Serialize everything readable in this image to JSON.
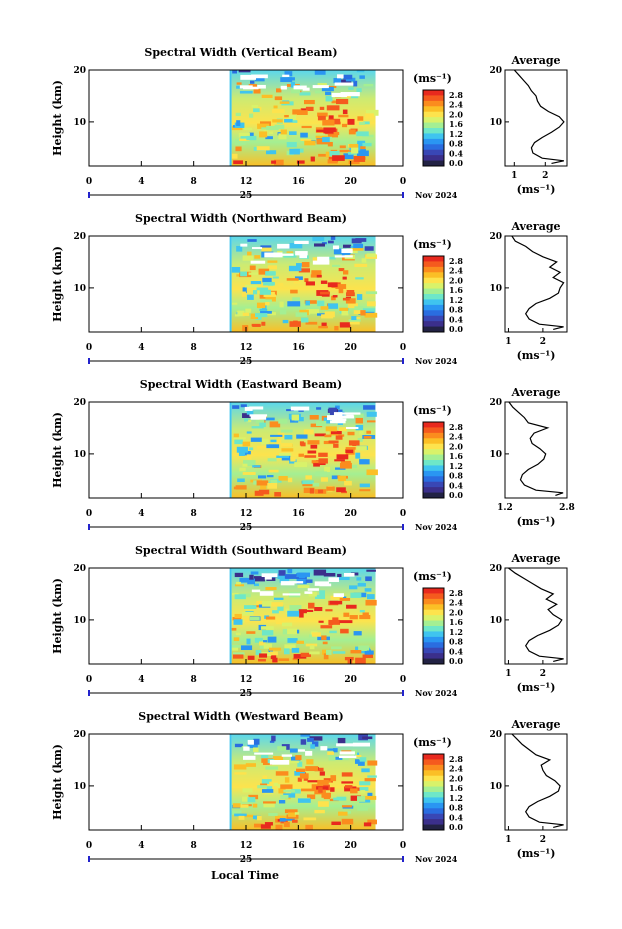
{
  "figure": {
    "xlabel": "Local Time",
    "date_label": "Nov 2024",
    "day_label": "25"
  },
  "colorbar": {
    "unit": "(ms⁻¹)",
    "ticks": [
      "2.8",
      "2.4",
      "2.0",
      "1.6",
      "1.2",
      "0.8",
      "0.4",
      "0.0"
    ],
    "colors": [
      "#e8291e",
      "#f55a1e",
      "#fb8c1e",
      "#fbbf26",
      "#fde34d",
      "#d9f26a",
      "#a4ef93",
      "#6ee7c8",
      "#3fc4ef",
      "#2a96f2",
      "#2a6de0",
      "#3947b5",
      "#3b2f8b",
      "#222244"
    ]
  },
  "chart_data": [
    {
      "type": "heatmap",
      "title": "Spectral Width (Vertical Beam)",
      "ylabel": "Height (km)",
      "x_ticks": [
        "0",
        "4",
        "8",
        "12",
        "16",
        "20",
        "0"
      ],
      "y_ticks": [
        "20",
        "10"
      ],
      "xlim": [
        0,
        24
      ],
      "ylim": [
        1.5,
        20
      ],
      "data_start_hour": 10.9,
      "data_end_hour": 21.9,
      "avg_profile": {
        "title": "Average",
        "xlabel": "(ms⁻¹)",
        "x_ticks": [
          "1",
          "2"
        ],
        "x_tick_values": [
          1,
          2
        ],
        "xlim": [
          0.7,
          2.7
        ],
        "height": [
          2,
          2.5,
          3,
          4,
          5,
          6,
          7,
          8,
          9,
          10,
          11,
          12,
          13,
          14,
          15,
          16,
          17,
          18,
          19,
          20
        ],
        "width": [
          2.2,
          2.6,
          1.9,
          1.6,
          1.55,
          1.65,
          1.9,
          2.2,
          2.45,
          2.6,
          2.45,
          2.1,
          1.85,
          1.75,
          1.7,
          1.55,
          1.45,
          1.3,
          1.15,
          1.0
        ]
      }
    },
    {
      "type": "heatmap",
      "title": "Spectral Width (Northward Beam)",
      "ylabel": "Height (km)",
      "x_ticks": [
        "0",
        "4",
        "8",
        "12",
        "16",
        "20",
        "0"
      ],
      "y_ticks": [
        "20",
        "10"
      ],
      "xlim": [
        0,
        24
      ],
      "ylim": [
        1.5,
        20
      ],
      "data_start_hour": 10.9,
      "data_end_hour": 21.9,
      "avg_profile": {
        "title": "Average",
        "xlabel": "(ms⁻¹)",
        "x_ticks": [
          "1",
          "2"
        ],
        "x_tick_values": [
          1,
          2
        ],
        "xlim": [
          0.9,
          2.7
        ],
        "height": [
          2,
          2.5,
          3,
          4,
          5,
          6,
          7,
          8,
          9,
          10,
          11,
          12,
          13,
          14,
          15,
          16,
          17,
          18,
          19,
          20
        ],
        "width": [
          2.3,
          2.6,
          1.9,
          1.6,
          1.5,
          1.6,
          1.8,
          2.2,
          2.45,
          2.5,
          2.6,
          2.3,
          2.5,
          2.2,
          2.4,
          2.0,
          1.7,
          1.5,
          1.2,
          1.1
        ]
      }
    },
    {
      "type": "heatmap",
      "title": "Spectral Width (Eastward Beam)",
      "ylabel": "Height (km)",
      "x_ticks": [
        "0",
        "4",
        "8",
        "12",
        "16",
        "20",
        "0"
      ],
      "y_ticks": [
        "20",
        "10"
      ],
      "xlim": [
        0,
        24
      ],
      "ylim": [
        1.5,
        20
      ],
      "data_start_hour": 10.9,
      "data_end_hour": 21.9,
      "avg_profile": {
        "title": "Average",
        "xlabel": "(ms⁻¹)",
        "x_ticks": [
          "1.2",
          "2.8"
        ],
        "x_tick_values": [
          1.2,
          2.8
        ],
        "xlim": [
          1.2,
          2.8
        ],
        "height": [
          2,
          2.5,
          3,
          4,
          5,
          6,
          7,
          8,
          9,
          10,
          11,
          12,
          13,
          14,
          15,
          16,
          17,
          18,
          19,
          20
        ],
        "width": [
          2.5,
          2.7,
          2.0,
          1.7,
          1.6,
          1.65,
          1.8,
          2.05,
          2.2,
          2.25,
          2.1,
          1.9,
          1.85,
          1.95,
          2.3,
          1.8,
          1.7,
          1.55,
          1.4,
          1.3
        ]
      }
    },
    {
      "type": "heatmap",
      "title": "Spectral Width (Southward Beam)",
      "ylabel": "Height (km)",
      "x_ticks": [
        "0",
        "4",
        "8",
        "12",
        "16",
        "20",
        "0"
      ],
      "y_ticks": [
        "20",
        "10"
      ],
      "xlim": [
        0,
        24
      ],
      "ylim": [
        1.5,
        20
      ],
      "data_start_hour": 10.9,
      "data_end_hour": 21.9,
      "avg_profile": {
        "title": "Average",
        "xlabel": "(ms⁻¹)",
        "x_ticks": [
          "1",
          "2"
        ],
        "x_tick_values": [
          1,
          2
        ],
        "xlim": [
          0.9,
          2.7
        ],
        "height": [
          2,
          2.5,
          3,
          4,
          5,
          6,
          7,
          8,
          9,
          10,
          11,
          12,
          13,
          14,
          15,
          16,
          17,
          18,
          19,
          20
        ],
        "width": [
          2.3,
          2.6,
          1.9,
          1.6,
          1.5,
          1.6,
          1.85,
          2.2,
          2.45,
          2.55,
          2.3,
          2.15,
          2.4,
          2.1,
          2.3,
          1.95,
          1.7,
          1.45,
          1.2,
          1.0
        ]
      }
    },
    {
      "type": "heatmap",
      "title": "Spectral Width (Westward Beam)",
      "ylabel": "Height (km)",
      "x_ticks": [
        "0",
        "4",
        "8",
        "12",
        "16",
        "20",
        "0"
      ],
      "y_ticks": [
        "20",
        "10"
      ],
      "xlim": [
        0,
        24
      ],
      "ylim": [
        1.5,
        20
      ],
      "data_start_hour": 10.9,
      "data_end_hour": 21.9,
      "avg_profile": {
        "title": "Average",
        "xlabel": "(ms⁻¹)",
        "x_ticks": [
          "1",
          "2"
        ],
        "x_tick_values": [
          1,
          2
        ],
        "xlim": [
          0.9,
          2.7
        ],
        "height": [
          2,
          2.5,
          3,
          4,
          5,
          6,
          7,
          8,
          9,
          10,
          11,
          12,
          13,
          14,
          15,
          16,
          17,
          18,
          19,
          20
        ],
        "width": [
          2.3,
          2.6,
          1.9,
          1.6,
          1.5,
          1.6,
          1.85,
          2.2,
          2.45,
          2.5,
          2.35,
          2.1,
          2.0,
          1.95,
          2.2,
          1.8,
          1.6,
          1.4,
          1.25,
          1.1
        ]
      }
    }
  ]
}
